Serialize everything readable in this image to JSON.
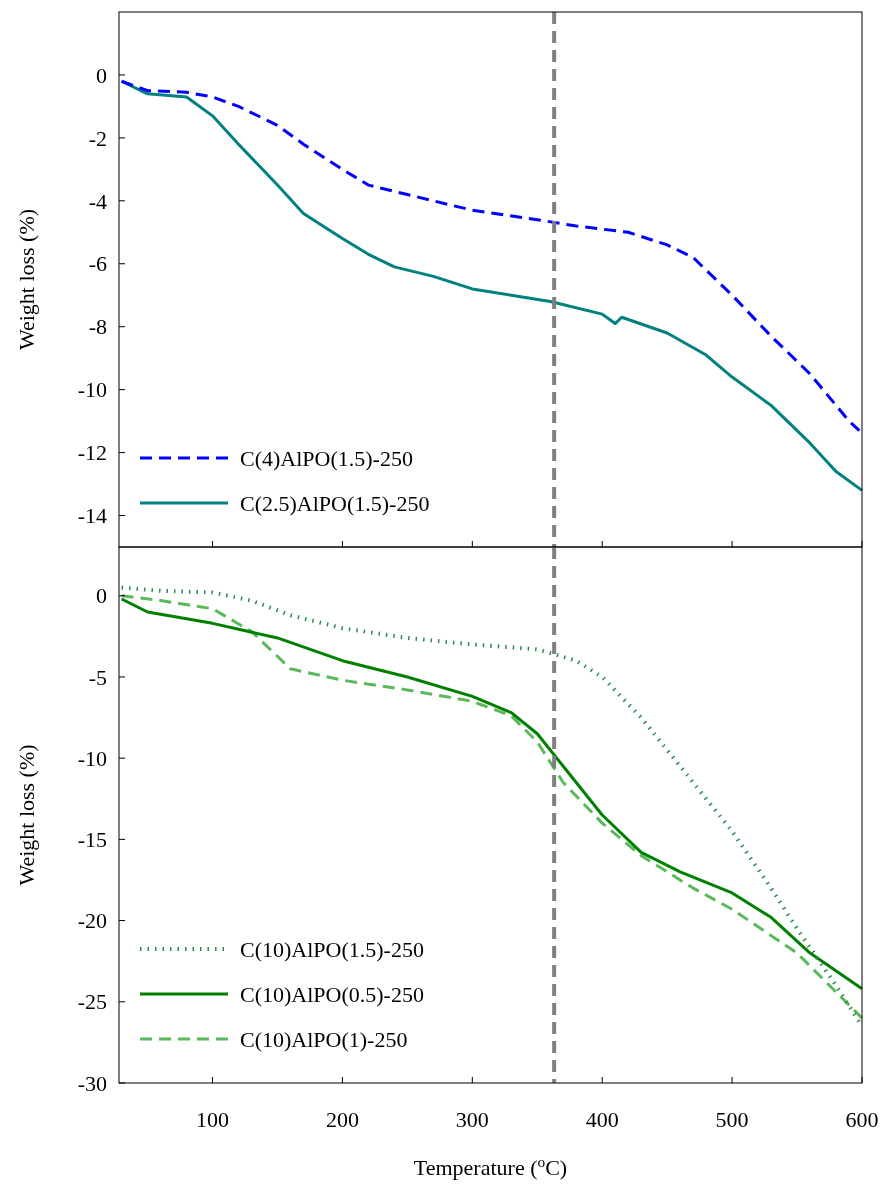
{
  "chart_data": [
    {
      "type": "line",
      "ylabel": "Weight loss (%)",
      "xlim": [
        28,
        600
      ],
      "xticks": [
        100,
        200,
        300,
        400,
        500,
        600
      ],
      "ylim": [
        -15,
        2
      ],
      "yticks": [
        0,
        -2,
        -4,
        -6,
        -8,
        -10,
        -12,
        -14
      ],
      "tick_labels": "y",
      "legend": "bottom left",
      "grid": false,
      "ref_lines": [
        {
          "axis": "x",
          "value": 363,
          "color": "#808080",
          "line_style": "dashed"
        }
      ],
      "series": [
        {
          "name": "C(4)AlPO(1.5)-250",
          "color": "#0000ff",
          "line_style": "dashed",
          "x": [
            30,
            50,
            80,
            100,
            120,
            150,
            170,
            200,
            220,
            250,
            300,
            350,
            380,
            420,
            450,
            470,
            500,
            530,
            560,
            590,
            598
          ],
          "values": [
            -0.2,
            -0.5,
            -0.55,
            -0.7,
            -1.0,
            -1.6,
            -2.2,
            -3.0,
            -3.5,
            -3.8,
            -4.3,
            -4.6,
            -4.8,
            -5.0,
            -5.4,
            -5.8,
            -7.0,
            -8.3,
            -9.5,
            -11.0,
            -11.3
          ]
        },
        {
          "name": "C(2.5)AlPO(1.5)-250",
          "color": "#008080",
          "line_style": "solid",
          "x": [
            30,
            50,
            80,
            100,
            120,
            150,
            170,
            200,
            220,
            240,
            270,
            300,
            330,
            360,
            400,
            410,
            415,
            450,
            480,
            500,
            530,
            560,
            580,
            600
          ],
          "values": [
            -0.2,
            -0.6,
            -0.7,
            -1.3,
            -2.2,
            -3.5,
            -4.4,
            -5.2,
            -5.7,
            -6.1,
            -6.4,
            -6.8,
            -7.0,
            -7.2,
            -7.6,
            -7.9,
            -7.7,
            -8.2,
            -8.9,
            -9.6,
            -10.5,
            -11.7,
            -12.6,
            -13.2
          ]
        }
      ]
    },
    {
      "type": "line",
      "xlabel": "Temperature ($^{o}$C)",
      "ylabel": "Weight loss (%)",
      "xlim": [
        28,
        600
      ],
      "xticks": [
        100,
        200,
        300,
        400,
        500,
        600
      ],
      "ylim": [
        -30,
        3
      ],
      "yticks": [
        0,
        -5,
        -10,
        -15,
        -20,
        -25,
        -30
      ],
      "legend": "bottom left",
      "grid": false,
      "ref_lines": [
        {
          "axis": "x",
          "value": 363,
          "color": "#808080",
          "line_style": "dashed"
        }
      ],
      "series": [
        {
          "name": "C(10)AlPO(1.5)-250",
          "color": "#2e8b57",
          "line_style": "dotted",
          "x": [
            30,
            60,
            100,
            130,
            160,
            200,
            250,
            300,
            350,
            380,
            400,
            430,
            450,
            480,
            500,
            530,
            550,
            580,
            600
          ],
          "values": [
            0.5,
            0.3,
            0.2,
            -0.3,
            -1.2,
            -2.0,
            -2.6,
            -3.0,
            -3.3,
            -4.0,
            -5.0,
            -7.5,
            -9.5,
            -12.5,
            -14.5,
            -18,
            -20.5,
            -24,
            -26.5
          ]
        },
        {
          "name": "C(10)AlPO(0.5)-250",
          "color": "#008000",
          "line_style": "solid",
          "x": [
            30,
            50,
            100,
            150,
            200,
            250,
            300,
            330,
            350,
            370,
            400,
            430,
            460,
            500,
            530,
            560,
            600
          ],
          "values": [
            -0.2,
            -1.0,
            -1.7,
            -2.6,
            -4.0,
            -5.0,
            -6.2,
            -7.2,
            -8.5,
            -10.5,
            -13.5,
            -15.8,
            -17.0,
            -18.3,
            -19.8,
            -22.0,
            -24.2
          ]
        },
        {
          "name": "C(10)AlPO(1)-250",
          "color": "#5cb85c",
          "line_style": "dashed",
          "x": [
            30,
            60,
            100,
            130,
            160,
            200,
            250,
            300,
            330,
            350,
            370,
            400,
            430,
            470,
            500,
            550,
            600
          ],
          "values": [
            0,
            -0.3,
            -0.8,
            -2.2,
            -4.5,
            -5.2,
            -5.8,
            -6.5,
            -7.4,
            -9.0,
            -11.5,
            -14.0,
            -16.0,
            -18.0,
            -19.3,
            -22.0,
            -26.0
          ]
        }
      ]
    }
  ]
}
